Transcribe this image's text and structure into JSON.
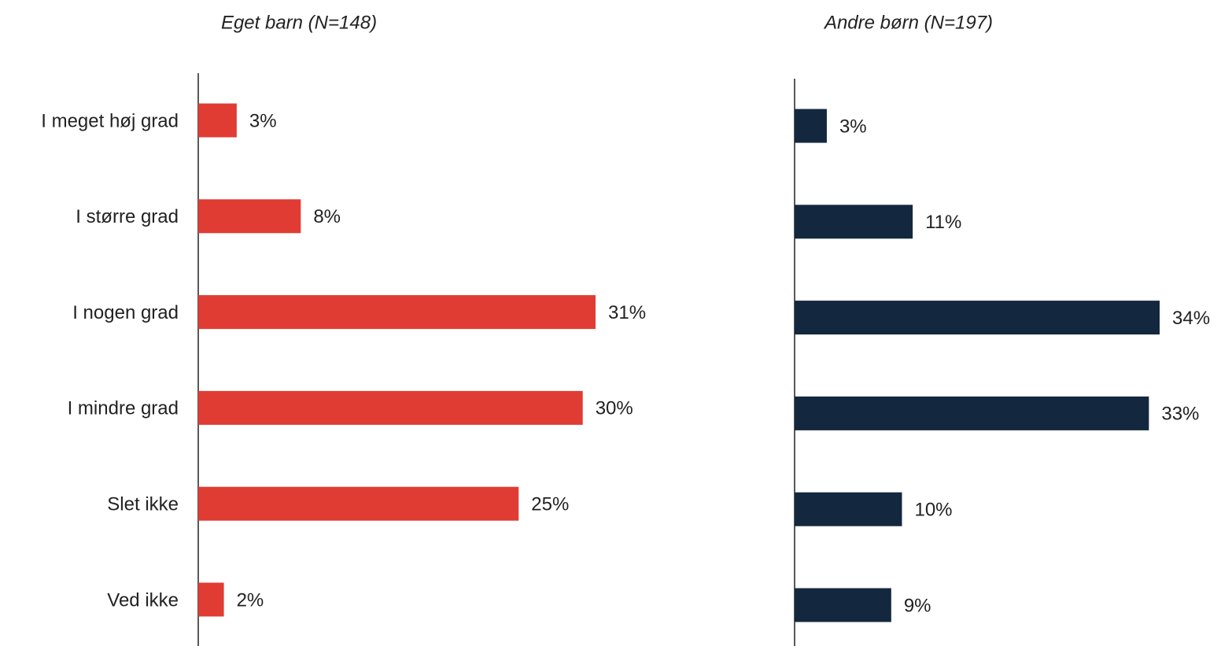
{
  "chart_data": [
    {
      "type": "bar",
      "orientation": "horizontal",
      "title": "Eget barn (N=148)",
      "categories": [
        "I meget høj grad",
        "I større grad",
        "I nogen grad",
        "I mindre grad",
        "Slet ikke",
        "Ved ikke"
      ],
      "values": [
        3,
        8,
        31,
        30,
        25,
        2
      ],
      "value_labels": [
        "3%",
        "8%",
        "31%",
        "30%",
        "25%",
        "2%"
      ],
      "color": "#e03c33"
    },
    {
      "type": "bar",
      "orientation": "horizontal",
      "title": "Andre børn (N=197)",
      "values": [
        3,
        11,
        34,
        33,
        10,
        9
      ],
      "value_labels": [
        "3%",
        "11%",
        "34%",
        "33%",
        "10%",
        "9%"
      ],
      "color": "#13283f"
    }
  ]
}
